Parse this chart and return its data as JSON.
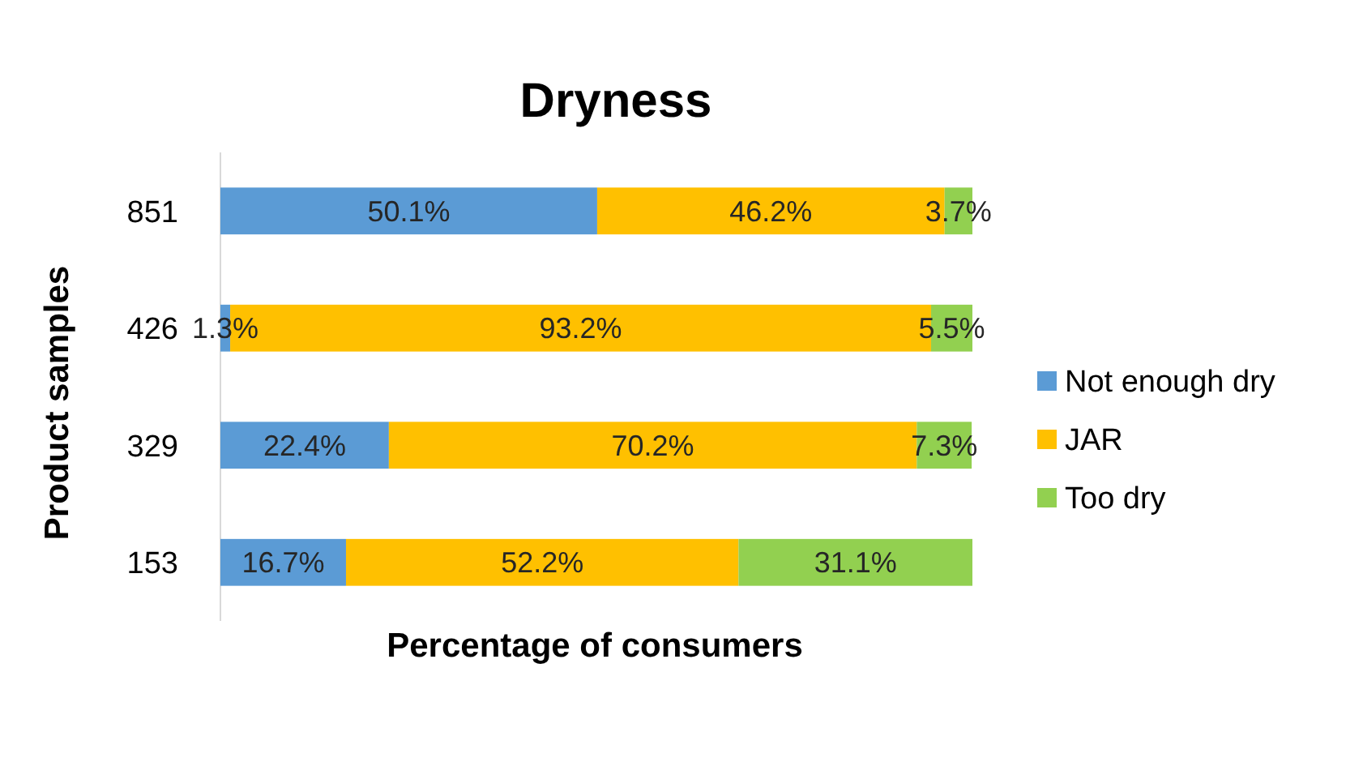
{
  "chart_data": {
    "type": "bar",
    "orientation": "horizontal",
    "stacked": true,
    "title": "Dryness",
    "xlabel": "Percentage of consumers",
    "ylabel": "Product samples",
    "categories": [
      "851",
      "426",
      "329",
      "153"
    ],
    "legend": "right",
    "tick_labels": "y",
    "series": [
      {
        "name": "Not enough dry",
        "color": "#5b9bd5",
        "values": [
          50.1,
          1.3,
          22.4,
          16.7
        ],
        "value_labels": [
          "50.1%",
          "1.3%",
          "22.4%",
          "16.7%"
        ]
      },
      {
        "name": "JAR",
        "color": "#ffc000",
        "values": [
          46.2,
          93.2,
          70.2,
          52.2
        ],
        "value_labels": [
          "46.2%",
          "93.2%",
          "70.2%",
          "52.2%"
        ]
      },
      {
        "name": "Too dry",
        "color": "#92d050",
        "values": [
          3.7,
          5.5,
          7.3,
          31.1
        ],
        "value_labels": [
          "3.7%",
          "5.5%",
          "7.3%",
          "31.1%"
        ]
      }
    ]
  }
}
